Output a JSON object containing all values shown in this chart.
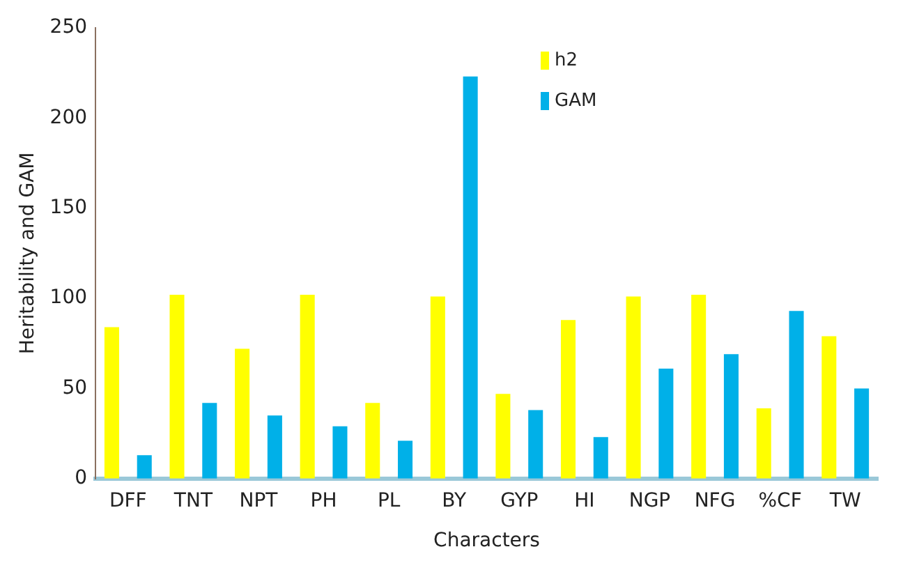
{
  "chart_data": {
    "type": "bar",
    "xlabel": "Characters",
    "ylabel": "Heritability and GAM",
    "categories": [
      "DFF",
      "TNT",
      "NPT",
      "PH",
      "PL",
      "BY",
      "GYP",
      "HI",
      "NGP",
      "NFG",
      "%CF",
      "TW"
    ],
    "series": [
      {
        "name": "h2",
        "color": "#ffff00",
        "values": [
          84,
          102,
          72,
          102,
          42,
          101,
          47,
          88,
          101,
          102,
          39,
          79
        ]
      },
      {
        "name": "GAM",
        "color": "#00b0e8",
        "values": [
          13,
          42,
          35,
          29,
          21,
          223,
          38,
          23,
          61,
          69,
          93,
          50
        ]
      }
    ],
    "ylim": [
      0,
      250
    ],
    "yticks": [
      0,
      50,
      100,
      150,
      200,
      250
    ],
    "grid": false,
    "legend": "top"
  }
}
